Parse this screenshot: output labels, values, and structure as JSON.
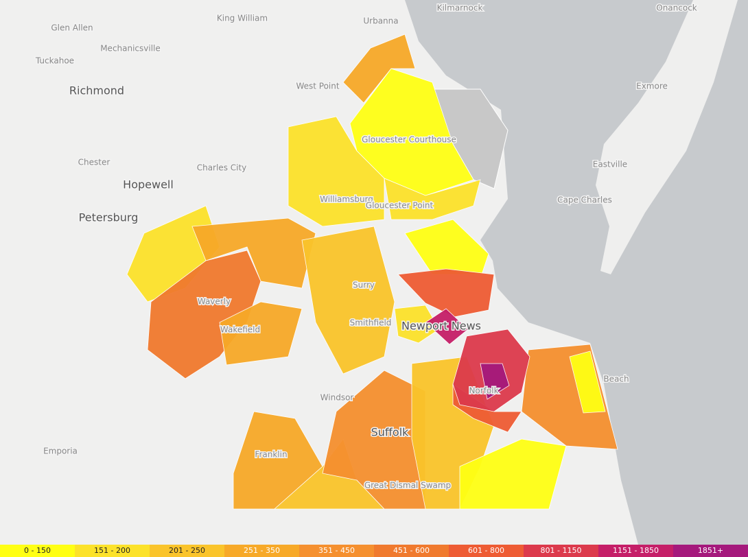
{
  "places": [
    "Kilmarnock",
    "Onancock",
    "King William",
    "Glen Allen",
    "Mechanicsville",
    "Tuckahoe",
    "Richmond",
    "Urbanna",
    "West Point",
    "Exmore",
    "Gloucester Courthouse",
    "Chester",
    "Charles City",
    "Eastville",
    "Hopewell",
    "Petersburg",
    "Cape Charles",
    "Williamsburg",
    "Gloucester Point",
    "Surry",
    "Waverly",
    "Smithfield",
    "Newport News",
    "Wakefield",
    "Beach",
    "Windsor",
    "Suffolk",
    "Emporia",
    "Franklin",
    "Great Dismal Swamp",
    "Norfolk"
  ],
  "legend": [
    {
      "label": "0 - 150",
      "color": "#ffff14"
    },
    {
      "label": "151 - 200",
      "color": "#fce22a"
    },
    {
      "label": "201 - 250",
      "color": "#fac42b"
    },
    {
      "label": "251 - 350",
      "color": "#f7a928"
    },
    {
      "label": "351 - 450",
      "color": "#f5902f"
    },
    {
      "label": "451 - 600",
      "color": "#f07a2e"
    },
    {
      "label": "601 - 800",
      "color": "#ee5c34"
    },
    {
      "label": "801 - 1150",
      "color": "#dc3a4c"
    },
    {
      "label": "1151 - 1850",
      "color": "#c51f68"
    },
    {
      "label": "1851+",
      "color": "#a5197c"
    }
  ]
}
